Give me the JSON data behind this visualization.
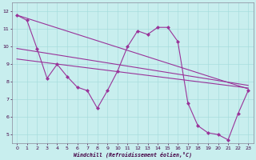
{
  "line_zigzag": {
    "x": [
      0,
      1,
      2,
      3,
      4,
      5,
      6,
      7,
      8,
      9,
      10,
      11,
      12,
      13,
      14,
      15,
      16,
      17,
      18,
      19,
      20,
      21,
      22,
      23
    ],
    "y": [
      11.8,
      11.5,
      9.9,
      8.2,
      9.0,
      8.3,
      7.7,
      7.5,
      6.5,
      7.5,
      8.6,
      10.0,
      10.9,
      10.7,
      11.1,
      11.1,
      10.3,
      6.8,
      5.5,
      5.1,
      5.0,
      4.7,
      6.2,
      7.5
    ]
  },
  "line_top": {
    "x": [
      0,
      23
    ],
    "y": [
      11.8,
      7.6
    ]
  },
  "line_mid1": {
    "x": [
      0,
      23
    ],
    "y": [
      9.9,
      7.8
    ]
  },
  "line_mid2": {
    "x": [
      0,
      23
    ],
    "y": [
      9.3,
      7.65
    ]
  },
  "line_color": "#993399",
  "bg_color": "#c8eeee",
  "grid_color": "#a8dddd",
  "xlabel": "Windchill (Refroidissement éolien,°C)",
  "ylabel_ticks": [
    5,
    6,
    7,
    8,
    9,
    10,
    11,
    12
  ],
  "xlabel_ticks": [
    0,
    1,
    2,
    3,
    4,
    5,
    6,
    7,
    8,
    9,
    10,
    11,
    12,
    13,
    14,
    15,
    16,
    17,
    18,
    19,
    20,
    21,
    22,
    23
  ],
  "xlim": [
    -0.5,
    23.5
  ],
  "ylim": [
    4.5,
    12.5
  ]
}
